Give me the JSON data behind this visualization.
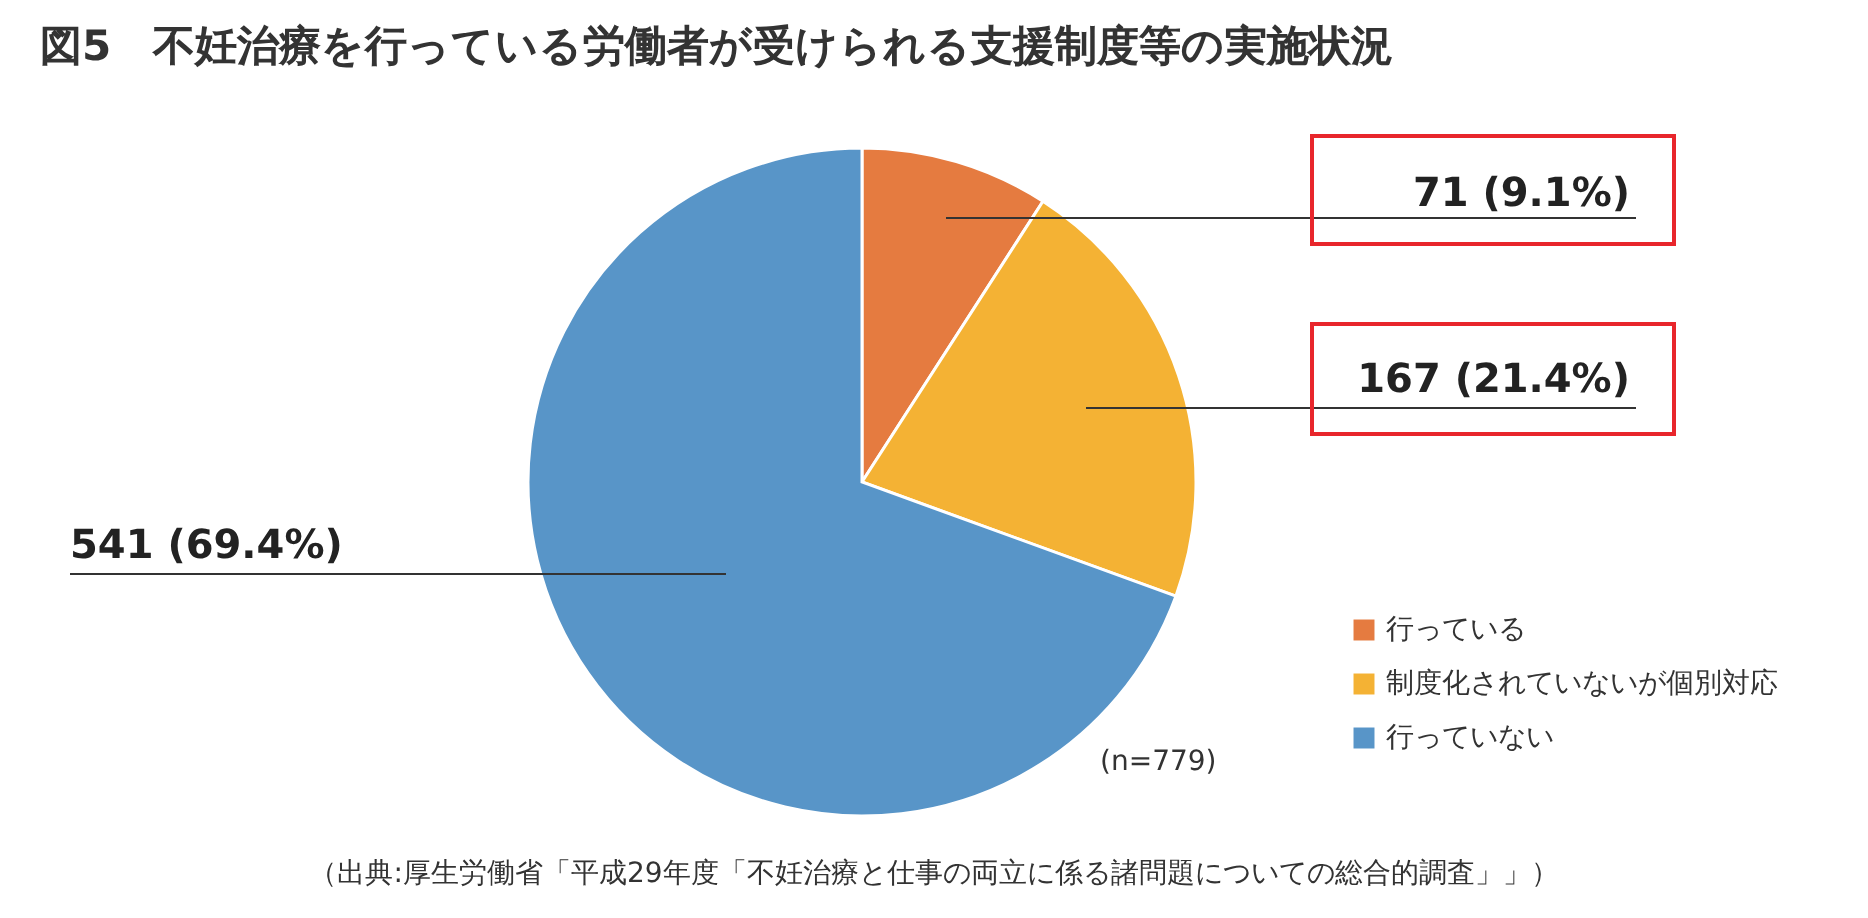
{
  "chart_data": {
    "type": "pie",
    "title": "図5　不妊治療を行っている労働者が受けられる支援制度等の実施状況",
    "categories": [
      "行っている",
      "制度化されていないが個別対応",
      "行っていない"
    ],
    "values": [
      71,
      167,
      541
    ],
    "colors": [
      "#e57b40",
      "#f4b234",
      "#5895c8"
    ],
    "value_labels": [
      "71 (9.1%)",
      "167 (21.4%)",
      "541 (69.4%)"
    ],
    "legend": "bottom right",
    "annotations": [
      "(n=779)",
      "（出典:厚生労働省「平成29年度「不妊治療と仕事の両立に係る諸問題についての総合的調査」」）"
    ]
  }
}
